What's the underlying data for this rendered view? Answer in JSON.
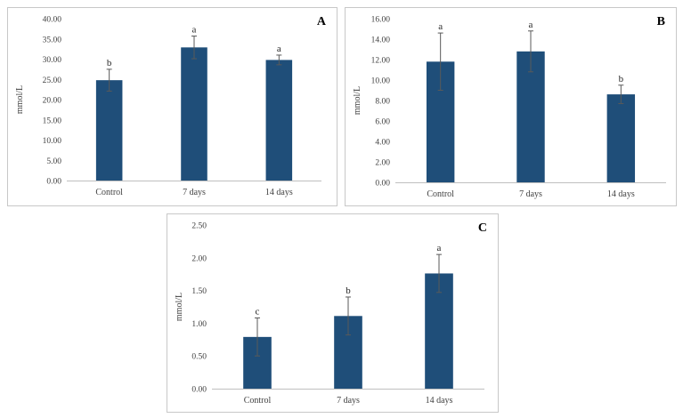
{
  "chart_data": [
    {
      "type": "bar",
      "panel_label": "A",
      "ylabel": "mmol/L",
      "categories": [
        "Control",
        "7 days",
        "14 days"
      ],
      "values": [
        24.8,
        32.9,
        29.8
      ],
      "errors": [
        2.7,
        2.8,
        1.2
      ],
      "letters": [
        "b",
        "a",
        "a"
      ],
      "ylim": [
        0,
        40
      ],
      "ticks": [
        0,
        5,
        10,
        15,
        20,
        25,
        30,
        35,
        40
      ],
      "tick_labels": [
        "0.00",
        "5.00",
        "10.00",
        "15.00",
        "20.00",
        "25.00",
        "30.00",
        "35.00",
        "40.00"
      ],
      "bar_color": "#1f4e79"
    },
    {
      "type": "bar",
      "panel_label": "B",
      "ylabel": "mmol/L",
      "categories": [
        "Control",
        "7 days",
        "14 days"
      ],
      "values": [
        11.8,
        12.8,
        8.6
      ],
      "errors": [
        2.8,
        2.0,
        0.9
      ],
      "letters": [
        "a",
        "a",
        "b"
      ],
      "ylim": [
        0,
        16
      ],
      "ticks": [
        0,
        2,
        4,
        6,
        8,
        10,
        12,
        14,
        16
      ],
      "tick_labels": [
        "0.00",
        "2.00",
        "4.00",
        "6.00",
        "8.00",
        "10.00",
        "12.00",
        "14.00",
        "16.00"
      ],
      "bar_color": "#1f4e79"
    },
    {
      "type": "bar",
      "panel_label": "C",
      "ylabel": "mmol/L",
      "categories": [
        "Control",
        "7 days",
        "14 days"
      ],
      "values": [
        0.79,
        1.11,
        1.76
      ],
      "errors": [
        0.29,
        0.29,
        0.29
      ],
      "letters": [
        "c",
        "b",
        "a"
      ],
      "ylim": [
        0,
        2.5
      ],
      "ticks": [
        0,
        0.5,
        1,
        1.5,
        2,
        2.5
      ],
      "tick_labels": [
        "0.00",
        "0.50",
        "1.00",
        "1.50",
        "2.00",
        "2.50"
      ],
      "bar_color": "#1f4e79"
    }
  ]
}
